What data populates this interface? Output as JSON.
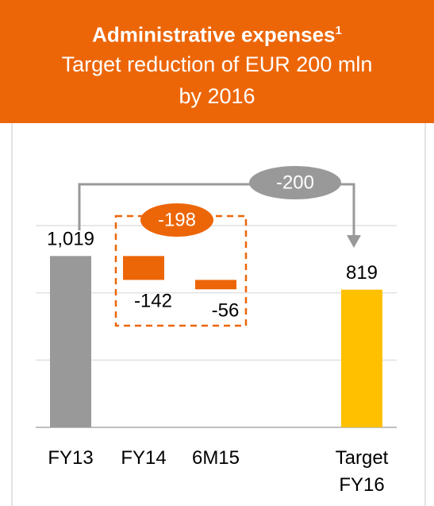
{
  "chart_data": {
    "type": "waterfall",
    "title": "Administrative expenses",
    "title_footnote": "1",
    "subtitle": "Target reduction of EUR 200 mln by 2016",
    "categories": [
      "FY13",
      "FY14",
      "6M15",
      "Target FY16"
    ],
    "values": [
      1019,
      -142,
      -56,
      819
    ],
    "value_labels": [
      "1,019",
      "-142",
      "-56",
      "819"
    ],
    "colors": [
      "#999999",
      "#EC6608",
      "#EC6608",
      "#FFC000"
    ],
    "brackets": [
      {
        "value": -198
      },
      {
        "value": -200
      }
    ],
    "ylim": [
      0,
      1200
    ],
    "yticks": [
      0,
      400,
      800,
      1200
    ],
    "grid": true
  }
}
